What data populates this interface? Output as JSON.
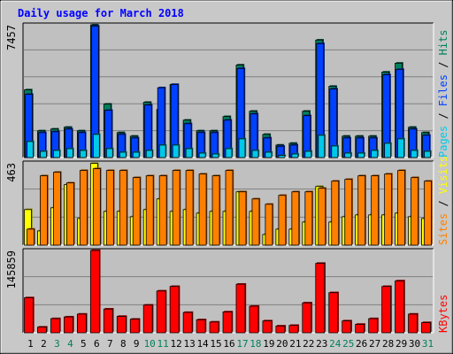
{
  "chart_data": {
    "type": "bar",
    "title": "Daily usage for March 2018",
    "categories": [
      "1",
      "2",
      "3",
      "4",
      "5",
      "6",
      "7",
      "8",
      "9",
      "10",
      "11",
      "12",
      "13",
      "14",
      "15",
      "16",
      "17",
      "18",
      "19",
      "20",
      "21",
      "22",
      "23",
      "24",
      "25",
      "26",
      "27",
      "28",
      "29",
      "30",
      "31"
    ],
    "weekend_days": [
      "3",
      "4",
      "10",
      "11",
      "17",
      "18",
      "24",
      "25",
      "31"
    ],
    "panels": [
      {
        "id": "hits-files-pages",
        "ymax_label": "7457",
        "ymax": 7457,
        "axis_legend": [
          {
            "text": "Pages",
            "color": "#00c8e8"
          },
          {
            "text": " / ",
            "color": "#000000"
          },
          {
            "text": "Files",
            "color": "#0040ff"
          },
          {
            "text": " / ",
            "color": "#000000"
          },
          {
            "text": "Hits",
            "color": "#00805c"
          }
        ],
        "series": [
          {
            "name": "Hits",
            "color": "#00805c",
            "values": [
              3800,
              1500,
              1600,
              1700,
              1500,
              7450,
              3000,
              1400,
              1200,
              3100,
              2700,
              4100,
              2100,
              1500,
              1500,
              2300,
              5200,
              2600,
              1300,
              700,
              800,
              2600,
              6600,
              4000,
              1200,
              1200,
              1200,
              4800,
              5300,
              1700,
              1400
            ]
          },
          {
            "name": "Files",
            "color": "#0040ff",
            "values": [
              3550,
              1400,
              1450,
              1600,
              1400,
              7380,
              2650,
              1300,
              1100,
              2950,
              3920,
              4100,
              1900,
              1400,
              1400,
              2100,
              5000,
              2450,
              1100,
              630,
              700,
              2350,
              6400,
              3850,
              1100,
              1100,
              1100,
              4650,
              4950,
              1600,
              1250
            ]
          },
          {
            "name": "Pages",
            "color": "#00c8e8",
            "values": [
              900,
              350,
              400,
              500,
              400,
              1300,
              500,
              300,
              300,
              400,
              700,
              700,
              500,
              250,
              200,
              500,
              1050,
              400,
              300,
              120,
              200,
              350,
              1250,
              650,
              250,
              250,
              400,
              800,
              1050,
              400,
              350
            ]
          }
        ]
      },
      {
        "id": "visits-sites",
        "ymax_label": "463",
        "ymax": 463,
        "axis_legend": [
          {
            "text": "Sites",
            "color": "#ff8000"
          },
          {
            "text": " / ",
            "color": "#000000"
          },
          {
            "text": "Visits",
            "color": "#ffff00"
          }
        ],
        "series": [
          {
            "name": "Visits",
            "color": "#ffff00",
            "values": [
              200,
              80,
              210,
              340,
              150,
              460,
              190,
              190,
              160,
              200,
              260,
              190,
              200,
              180,
              190,
              190,
              300,
              190,
              60,
              90,
              90,
              130,
              330,
              130,
              160,
              170,
              170,
              170,
              180,
              160,
              150
            ]
          },
          {
            "name": "Sites",
            "color": "#ff8000",
            "values": [
              90,
              390,
              410,
              350,
              420,
              430,
              420,
              420,
              380,
              390,
              390,
              420,
              420,
              400,
              390,
              420,
              300,
              260,
              230,
              280,
              300,
              300,
              320,
              360,
              370,
              390,
              390,
              400,
              420,
              380,
              360
            ]
          }
        ]
      },
      {
        "id": "kbytes",
        "ymax_label": "145859",
        "ymax": 145859,
        "axis_legend": [
          {
            "text": "KBytes",
            "color": "#ff0000"
          }
        ],
        "series": [
          {
            "name": "KBytes",
            "color": "#ff0000",
            "values": [
              62000,
              10000,
              25000,
              28000,
              33000,
              145859,
              42000,
              29000,
              24000,
              49000,
              74000,
              82000,
              36000,
              23000,
              19000,
              37000,
              86000,
              47000,
              21000,
              12000,
              13000,
              53000,
              123000,
              71000,
              21000,
              15000,
              25000,
              82000,
              92000,
              33000,
              18000
            ]
          }
        ]
      }
    ]
  }
}
